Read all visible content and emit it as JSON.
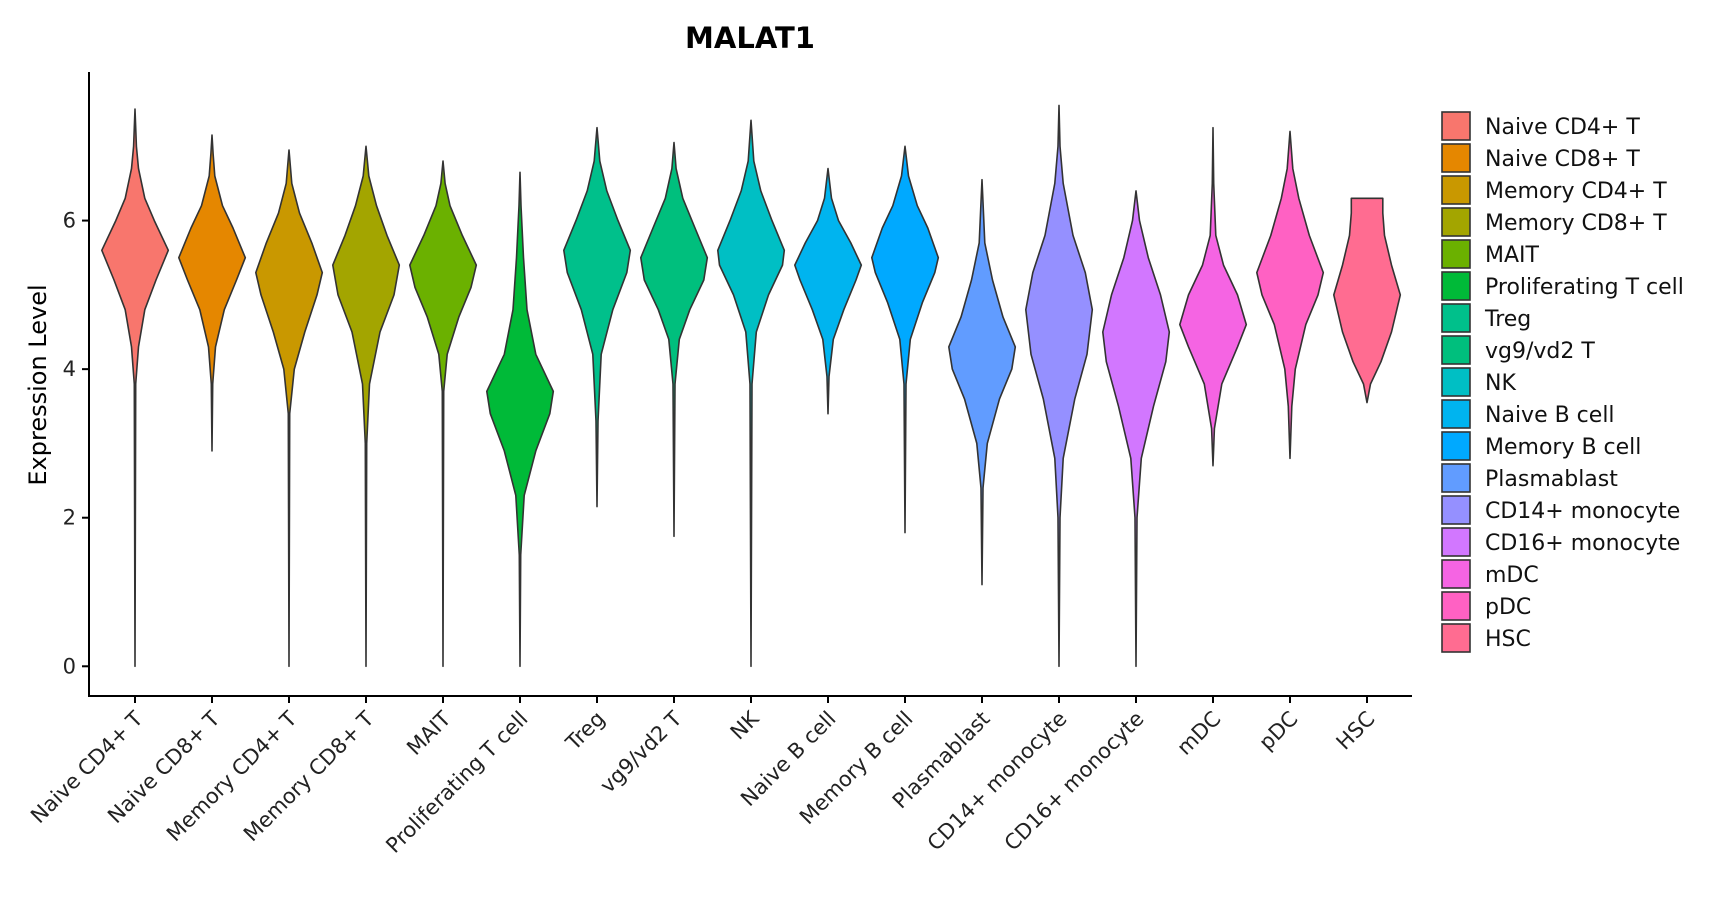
{
  "chart_data": {
    "type": "violin",
    "title": "MALAT1",
    "xlabel": "",
    "ylabel": "Expression Level",
    "ylim": [
      -0.4,
      8.0
    ],
    "yticks": [
      0,
      2,
      4,
      6
    ],
    "grid": false,
    "legend_position": "right",
    "categories": [
      {
        "name": "Naive CD4+ T",
        "color": "#F8766D",
        "min": 0.0,
        "max": 7.5,
        "density": [
          [
            0,
            0
          ],
          [
            3.8,
            0.02
          ],
          [
            4.3,
            0.1
          ],
          [
            4.8,
            0.28
          ],
          [
            5.2,
            0.6
          ],
          [
            5.6,
            0.95
          ],
          [
            6.0,
            0.55
          ],
          [
            6.3,
            0.28
          ],
          [
            6.7,
            0.1
          ],
          [
            7.0,
            0.04
          ],
          [
            7.5,
            0
          ]
        ]
      },
      {
        "name": "Naive CD8+ T",
        "color": "#E58700",
        "min": 2.9,
        "max": 7.15,
        "density": [
          [
            2.9,
            0
          ],
          [
            3.8,
            0.02
          ],
          [
            4.3,
            0.1
          ],
          [
            4.8,
            0.35
          ],
          [
            5.2,
            0.7
          ],
          [
            5.5,
            0.95
          ],
          [
            5.9,
            0.6
          ],
          [
            6.2,
            0.3
          ],
          [
            6.6,
            0.08
          ],
          [
            6.9,
            0.03
          ],
          [
            7.15,
            0
          ]
        ]
      },
      {
        "name": "Memory CD4+ T",
        "color": "#C99800",
        "min": 0.0,
        "max": 6.95,
        "density": [
          [
            0,
            0
          ],
          [
            3.4,
            0.02
          ],
          [
            4.0,
            0.15
          ],
          [
            4.5,
            0.45
          ],
          [
            5.0,
            0.8
          ],
          [
            5.3,
            0.95
          ],
          [
            5.7,
            0.65
          ],
          [
            6.1,
            0.3
          ],
          [
            6.5,
            0.08
          ],
          [
            6.95,
            0
          ]
        ]
      },
      {
        "name": "Memory CD8+ T",
        "color": "#A3A500",
        "min": 0.0,
        "max": 7.0,
        "density": [
          [
            0,
            0
          ],
          [
            3.0,
            0.02
          ],
          [
            3.8,
            0.1
          ],
          [
            4.5,
            0.4
          ],
          [
            5.0,
            0.8
          ],
          [
            5.4,
            0.95
          ],
          [
            5.8,
            0.6
          ],
          [
            6.2,
            0.3
          ],
          [
            6.6,
            0.08
          ],
          [
            7.0,
            0
          ]
        ]
      },
      {
        "name": "MAIT",
        "color": "#6BB100",
        "min": 0.0,
        "max": 6.8,
        "density": [
          [
            0,
            0
          ],
          [
            3.7,
            0.02
          ],
          [
            4.2,
            0.12
          ],
          [
            4.7,
            0.45
          ],
          [
            5.1,
            0.8
          ],
          [
            5.4,
            0.95
          ],
          [
            5.8,
            0.55
          ],
          [
            6.2,
            0.2
          ],
          [
            6.5,
            0.06
          ],
          [
            6.8,
            0
          ]
        ]
      },
      {
        "name": "Proliferating T cell",
        "color": "#00BA38",
        "min": 0.0,
        "max": 6.65,
        "density": [
          [
            0,
            0
          ],
          [
            1.5,
            0.02
          ],
          [
            2.3,
            0.12
          ],
          [
            2.9,
            0.45
          ],
          [
            3.4,
            0.85
          ],
          [
            3.7,
            0.95
          ],
          [
            4.2,
            0.45
          ],
          [
            4.8,
            0.2
          ],
          [
            5.5,
            0.1
          ],
          [
            6.2,
            0.03
          ],
          [
            6.65,
            0
          ]
        ]
      },
      {
        "name": "Treg",
        "color": "#00C08B",
        "min": 2.15,
        "max": 7.25,
        "density": [
          [
            2.15,
            0
          ],
          [
            3.3,
            0.03
          ],
          [
            4.2,
            0.12
          ],
          [
            4.8,
            0.45
          ],
          [
            5.3,
            0.85
          ],
          [
            5.6,
            0.95
          ],
          [
            6.0,
            0.6
          ],
          [
            6.4,
            0.28
          ],
          [
            6.8,
            0.08
          ],
          [
            7.25,
            0
          ]
        ]
      },
      {
        "name": "vg9/vd2 T",
        "color": "#00BF7D",
        "min": 1.75,
        "max": 7.05,
        "density": [
          [
            1.75,
            0
          ],
          [
            3.8,
            0.03
          ],
          [
            4.4,
            0.15
          ],
          [
            4.8,
            0.45
          ],
          [
            5.2,
            0.85
          ],
          [
            5.5,
            0.95
          ],
          [
            5.9,
            0.6
          ],
          [
            6.3,
            0.25
          ],
          [
            6.7,
            0.06
          ],
          [
            7.05,
            0
          ]
        ]
      },
      {
        "name": "NK",
        "color": "#00BFC4",
        "min": 0.0,
        "max": 7.35,
        "density": [
          [
            0,
            0
          ],
          [
            3.8,
            0.03
          ],
          [
            4.5,
            0.15
          ],
          [
            5.0,
            0.5
          ],
          [
            5.4,
            0.9
          ],
          [
            5.6,
            0.95
          ],
          [
            6.0,
            0.6
          ],
          [
            6.4,
            0.28
          ],
          [
            6.8,
            0.08
          ],
          [
            7.35,
            0
          ]
        ]
      },
      {
        "name": "Naive B cell",
        "color": "#00B4EF",
        "min": 3.4,
        "max": 6.7,
        "density": [
          [
            3.4,
            0
          ],
          [
            3.9,
            0.03
          ],
          [
            4.4,
            0.15
          ],
          [
            4.8,
            0.45
          ],
          [
            5.2,
            0.8
          ],
          [
            5.4,
            0.95
          ],
          [
            5.7,
            0.65
          ],
          [
            6.0,
            0.3
          ],
          [
            6.3,
            0.1
          ],
          [
            6.7,
            0
          ]
        ]
      },
      {
        "name": "Memory B cell",
        "color": "#00A9FF",
        "min": 1.8,
        "max": 7.0,
        "density": [
          [
            1.8,
            0
          ],
          [
            3.8,
            0.03
          ],
          [
            4.4,
            0.15
          ],
          [
            4.9,
            0.5
          ],
          [
            5.3,
            0.85
          ],
          [
            5.5,
            0.95
          ],
          [
            5.9,
            0.65
          ],
          [
            6.2,
            0.35
          ],
          [
            6.6,
            0.1
          ],
          [
            7.0,
            0
          ]
        ]
      },
      {
        "name": "Plasmablast",
        "color": "#619CFF",
        "min": 1.1,
        "max": 6.55,
        "density": [
          [
            1.1,
            0
          ],
          [
            2.4,
            0.03
          ],
          [
            3.0,
            0.15
          ],
          [
            3.6,
            0.5
          ],
          [
            4.0,
            0.85
          ],
          [
            4.3,
            0.95
          ],
          [
            4.7,
            0.6
          ],
          [
            5.2,
            0.3
          ],
          [
            5.7,
            0.08
          ],
          [
            6.55,
            0
          ]
        ]
      },
      {
        "name": "CD14+ monocyte",
        "color": "#9590FF",
        "min": 0.0,
        "max": 7.55,
        "density": [
          [
            0,
            0
          ],
          [
            2.0,
            0.03
          ],
          [
            2.8,
            0.12
          ],
          [
            3.6,
            0.45
          ],
          [
            4.2,
            0.8
          ],
          [
            4.8,
            0.95
          ],
          [
            5.3,
            0.75
          ],
          [
            5.8,
            0.4
          ],
          [
            6.5,
            0.12
          ],
          [
            7.0,
            0.03
          ],
          [
            7.55,
            0
          ]
        ]
      },
      {
        "name": "CD16+ monocyte",
        "color": "#D277FF",
        "min": 0.0,
        "max": 6.4,
        "density": [
          [
            0,
            0
          ],
          [
            2.0,
            0.03
          ],
          [
            2.8,
            0.15
          ],
          [
            3.5,
            0.5
          ],
          [
            4.1,
            0.85
          ],
          [
            4.5,
            0.95
          ],
          [
            5.0,
            0.7
          ],
          [
            5.5,
            0.35
          ],
          [
            6.0,
            0.1
          ],
          [
            6.4,
            0
          ]
        ]
      },
      {
        "name": "mDC",
        "color": "#F564E3",
        "min": 2.7,
        "max": 7.25,
        "density": [
          [
            2.7,
            0
          ],
          [
            3.2,
            0.04
          ],
          [
            3.8,
            0.25
          ],
          [
            4.3,
            0.7
          ],
          [
            4.6,
            0.95
          ],
          [
            5.0,
            0.7
          ],
          [
            5.4,
            0.3
          ],
          [
            5.8,
            0.08
          ],
          [
            6.5,
            0.02
          ],
          [
            7.25,
            0
          ]
        ]
      },
      {
        "name": "pDC",
        "color": "#FF61C3",
        "min": 2.8,
        "max": 7.2,
        "density": [
          [
            2.8,
            0
          ],
          [
            3.5,
            0.05
          ],
          [
            4.0,
            0.15
          ],
          [
            4.6,
            0.45
          ],
          [
            5.0,
            0.8
          ],
          [
            5.3,
            0.95
          ],
          [
            5.8,
            0.55
          ],
          [
            6.3,
            0.25
          ],
          [
            6.7,
            0.08
          ],
          [
            7.2,
            0
          ]
        ]
      },
      {
        "name": "HSC",
        "color": "#FF6C91",
        "min": 3.55,
        "max": 6.3,
        "density": [
          [
            3.55,
            0
          ],
          [
            3.8,
            0.1
          ],
          [
            4.1,
            0.4
          ],
          [
            4.5,
            0.7
          ],
          [
            5.0,
            0.95
          ],
          [
            5.4,
            0.7
          ],
          [
            5.8,
            0.5
          ],
          [
            6.1,
            0.45
          ],
          [
            6.3,
            0.45
          ]
        ]
      }
    ]
  }
}
